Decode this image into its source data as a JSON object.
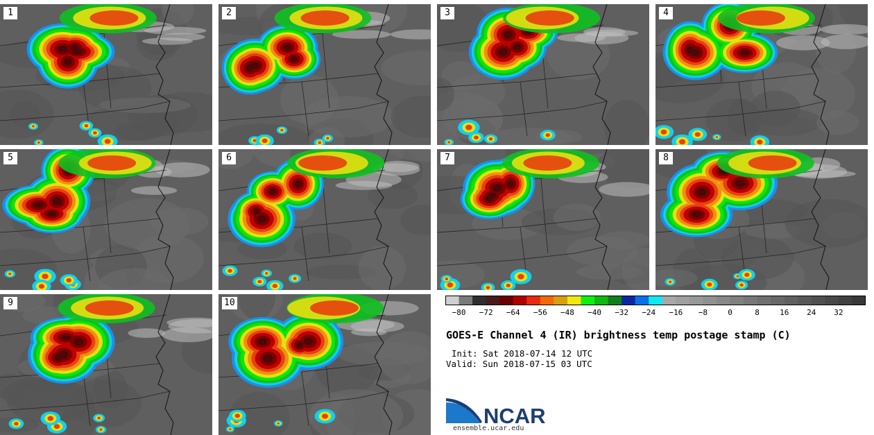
{
  "panels": [
    "1",
    "2",
    "3",
    "4",
    "5",
    "6",
    "7",
    "8",
    "9",
    "10"
  ],
  "colorbar": {
    "ticks": [
      "−80",
      "−72",
      "−64",
      "−56",
      "−48",
      "−40",
      "−32",
      "−24",
      "−16",
      "−8",
      "0",
      "8",
      "16",
      "24",
      "32"
    ],
    "tick_values": [
      -80,
      -72,
      -64,
      -56,
      -48,
      -40,
      -32,
      -24,
      -16,
      -8,
      0,
      8,
      16,
      24,
      32
    ],
    "range": [
      -84,
      40
    ],
    "bin_width": 4,
    "bin_colors": [
      "#cfcfcf",
      "#7a7a7a",
      "#2e2e2e",
      "#4a1a1a",
      "#6a0000",
      "#b00000",
      "#e82a10",
      "#f26a08",
      "#d8a010",
      "#f0e810",
      "#10f010",
      "#10b810",
      "#10801c",
      "#0a28a0",
      "#0a70e8",
      "#10e8f0",
      "#a8a8a8",
      "#a0a0a0",
      "#989898",
      "#909090",
      "#888888",
      "#808080",
      "#787878",
      "#707070",
      "#686868",
      "#606060",
      "#585858",
      "#505050",
      "#484848",
      "#404040",
      "#383838"
    ]
  },
  "title": "GOES-E Channel 4 (IR) brightness temp postage stamp (C)",
  "init": "Init: Sat 2018-07-14 12 UTC",
  "valid": "Valid: Sun 2018-07-15 03 UTC",
  "logo": {
    "text": "NCAR",
    "url": "ensemble.ucar.edu",
    "color": "#1c3e72",
    "swoosh_color": "#1c78c8"
  },
  "storm_colors": [
    "#1e8fe8",
    "#10d0f0",
    "#10c020",
    "#08e808",
    "#e8e010",
    "#f09010",
    "#e84010",
    "#c00000",
    "#7a0000",
    "#4a0808"
  ]
}
